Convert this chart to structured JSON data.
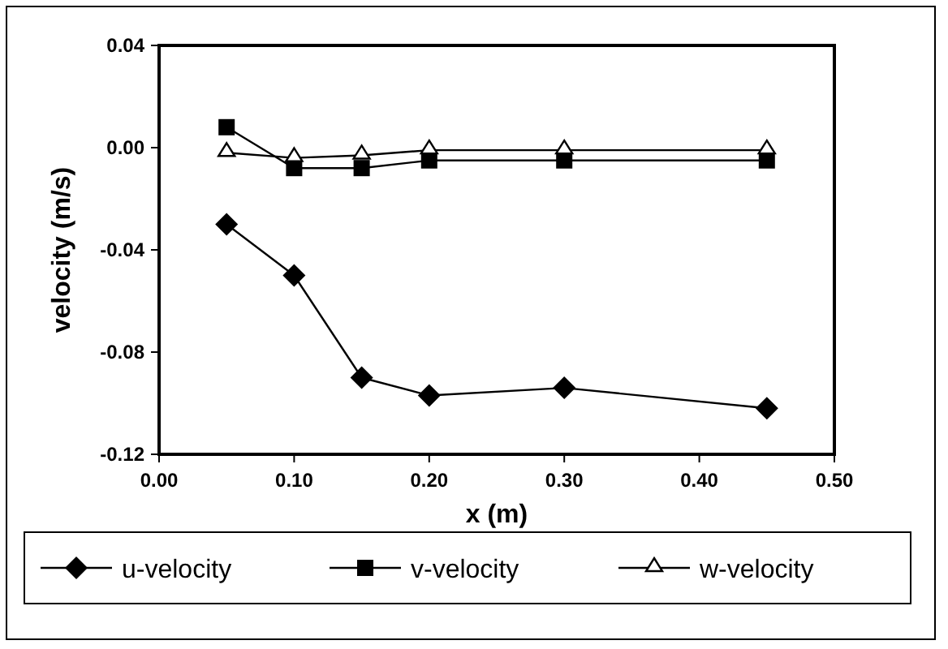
{
  "chart_data": {
    "type": "line",
    "xlabel": "x (m)",
    "ylabel": "velocity (m/s)",
    "x": [
      0.05,
      0.1,
      0.15,
      0.2,
      0.3,
      0.45
    ],
    "xlim": [
      0,
      0.5
    ],
    "xticks": [
      {
        "value": 0,
        "label": "0.00"
      },
      {
        "value": 0.1,
        "label": "0.10"
      },
      {
        "value": 0.2,
        "label": "0.20"
      },
      {
        "value": 0.3,
        "label": "0.30"
      },
      {
        "value": 0.4,
        "label": "0.40"
      },
      {
        "value": 0.5,
        "label": "0.50"
      }
    ],
    "ylim": [
      -0.12,
      0.04
    ],
    "yticks": [
      {
        "value": -0.12,
        "label": "-0.12"
      },
      {
        "value": -0.08,
        "label": "-0.08"
      },
      {
        "value": -0.04,
        "label": "-0.04"
      },
      {
        "value": 0,
        "label": "0.00"
      },
      {
        "value": 0.04,
        "label": "0.04"
      }
    ],
    "grid": false,
    "legend": "bottom",
    "series": [
      {
        "name": "u-velocity",
        "color": "#000000",
        "marker": "diamond",
        "values": [
          -0.03,
          -0.05,
          -0.09,
          -0.097,
          -0.094,
          -0.102
        ]
      },
      {
        "name": "v-velocity",
        "color": "#000000",
        "marker": "square",
        "values": [
          0.008,
          -0.008,
          -0.008,
          -0.005,
          -0.005,
          -0.005
        ]
      },
      {
        "name": "w-velocity",
        "color": "#000000",
        "marker": "triangle",
        "values": [
          -0.002,
          -0.004,
          -0.003,
          -0.001,
          -0.001,
          -0.001
        ]
      }
    ]
  }
}
